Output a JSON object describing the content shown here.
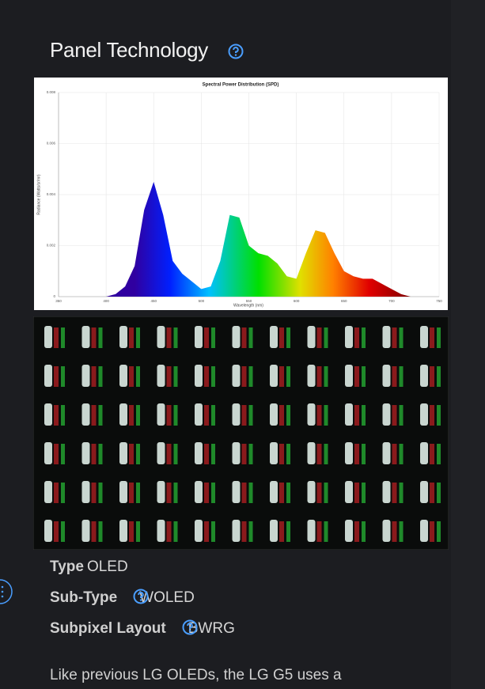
{
  "heading": "Panel Technology",
  "chart_data": {
    "type": "area",
    "title": "Spectral Power Distribution (SPD)",
    "x_label": "Wavelength (nm)",
    "y_label": "Radiance (Watts/sr/m²)",
    "x": [
      400,
      410,
      420,
      430,
      440,
      450,
      460,
      470,
      480,
      490,
      500,
      510,
      520,
      530,
      540,
      550,
      560,
      570,
      580,
      590,
      600,
      610,
      620,
      630,
      640,
      650,
      660,
      670,
      680,
      690,
      700,
      710,
      720,
      730,
      740,
      750
    ],
    "values": [
      0,
      0.0001,
      0.0004,
      0.0012,
      0.0034,
      0.0045,
      0.0032,
      0.0014,
      0.0009,
      0.0006,
      0.0003,
      0.0004,
      0.0014,
      0.0032,
      0.0031,
      0.002,
      0.0017,
      0.0016,
      0.0013,
      0.0008,
      0.0007,
      0.0017,
      0.0026,
      0.0025,
      0.0017,
      0.001,
      0.0008,
      0.0007,
      0.0007,
      0.0005,
      0.0003,
      0.0001,
      0,
      0,
      0,
      0
    ],
    "xlim": [
      350,
      750
    ],
    "xticks": [
      350,
      400,
      450,
      500,
      550,
      600,
      650,
      700,
      750
    ],
    "ylim": [
      0,
      0.008
    ],
    "yticks": [
      0,
      0.002,
      0.004,
      0.006,
      0.008
    ],
    "grid": true
  },
  "specs": [
    {
      "label": "Type",
      "value": "OLED"
    },
    {
      "label": "Sub-Type",
      "value": "WOLED"
    },
    {
      "label": "Subpixel Layout",
      "value": "BWRG"
    }
  ],
  "paragraph": "Like previous LG OLEDs, the LG G5 uses a"
}
